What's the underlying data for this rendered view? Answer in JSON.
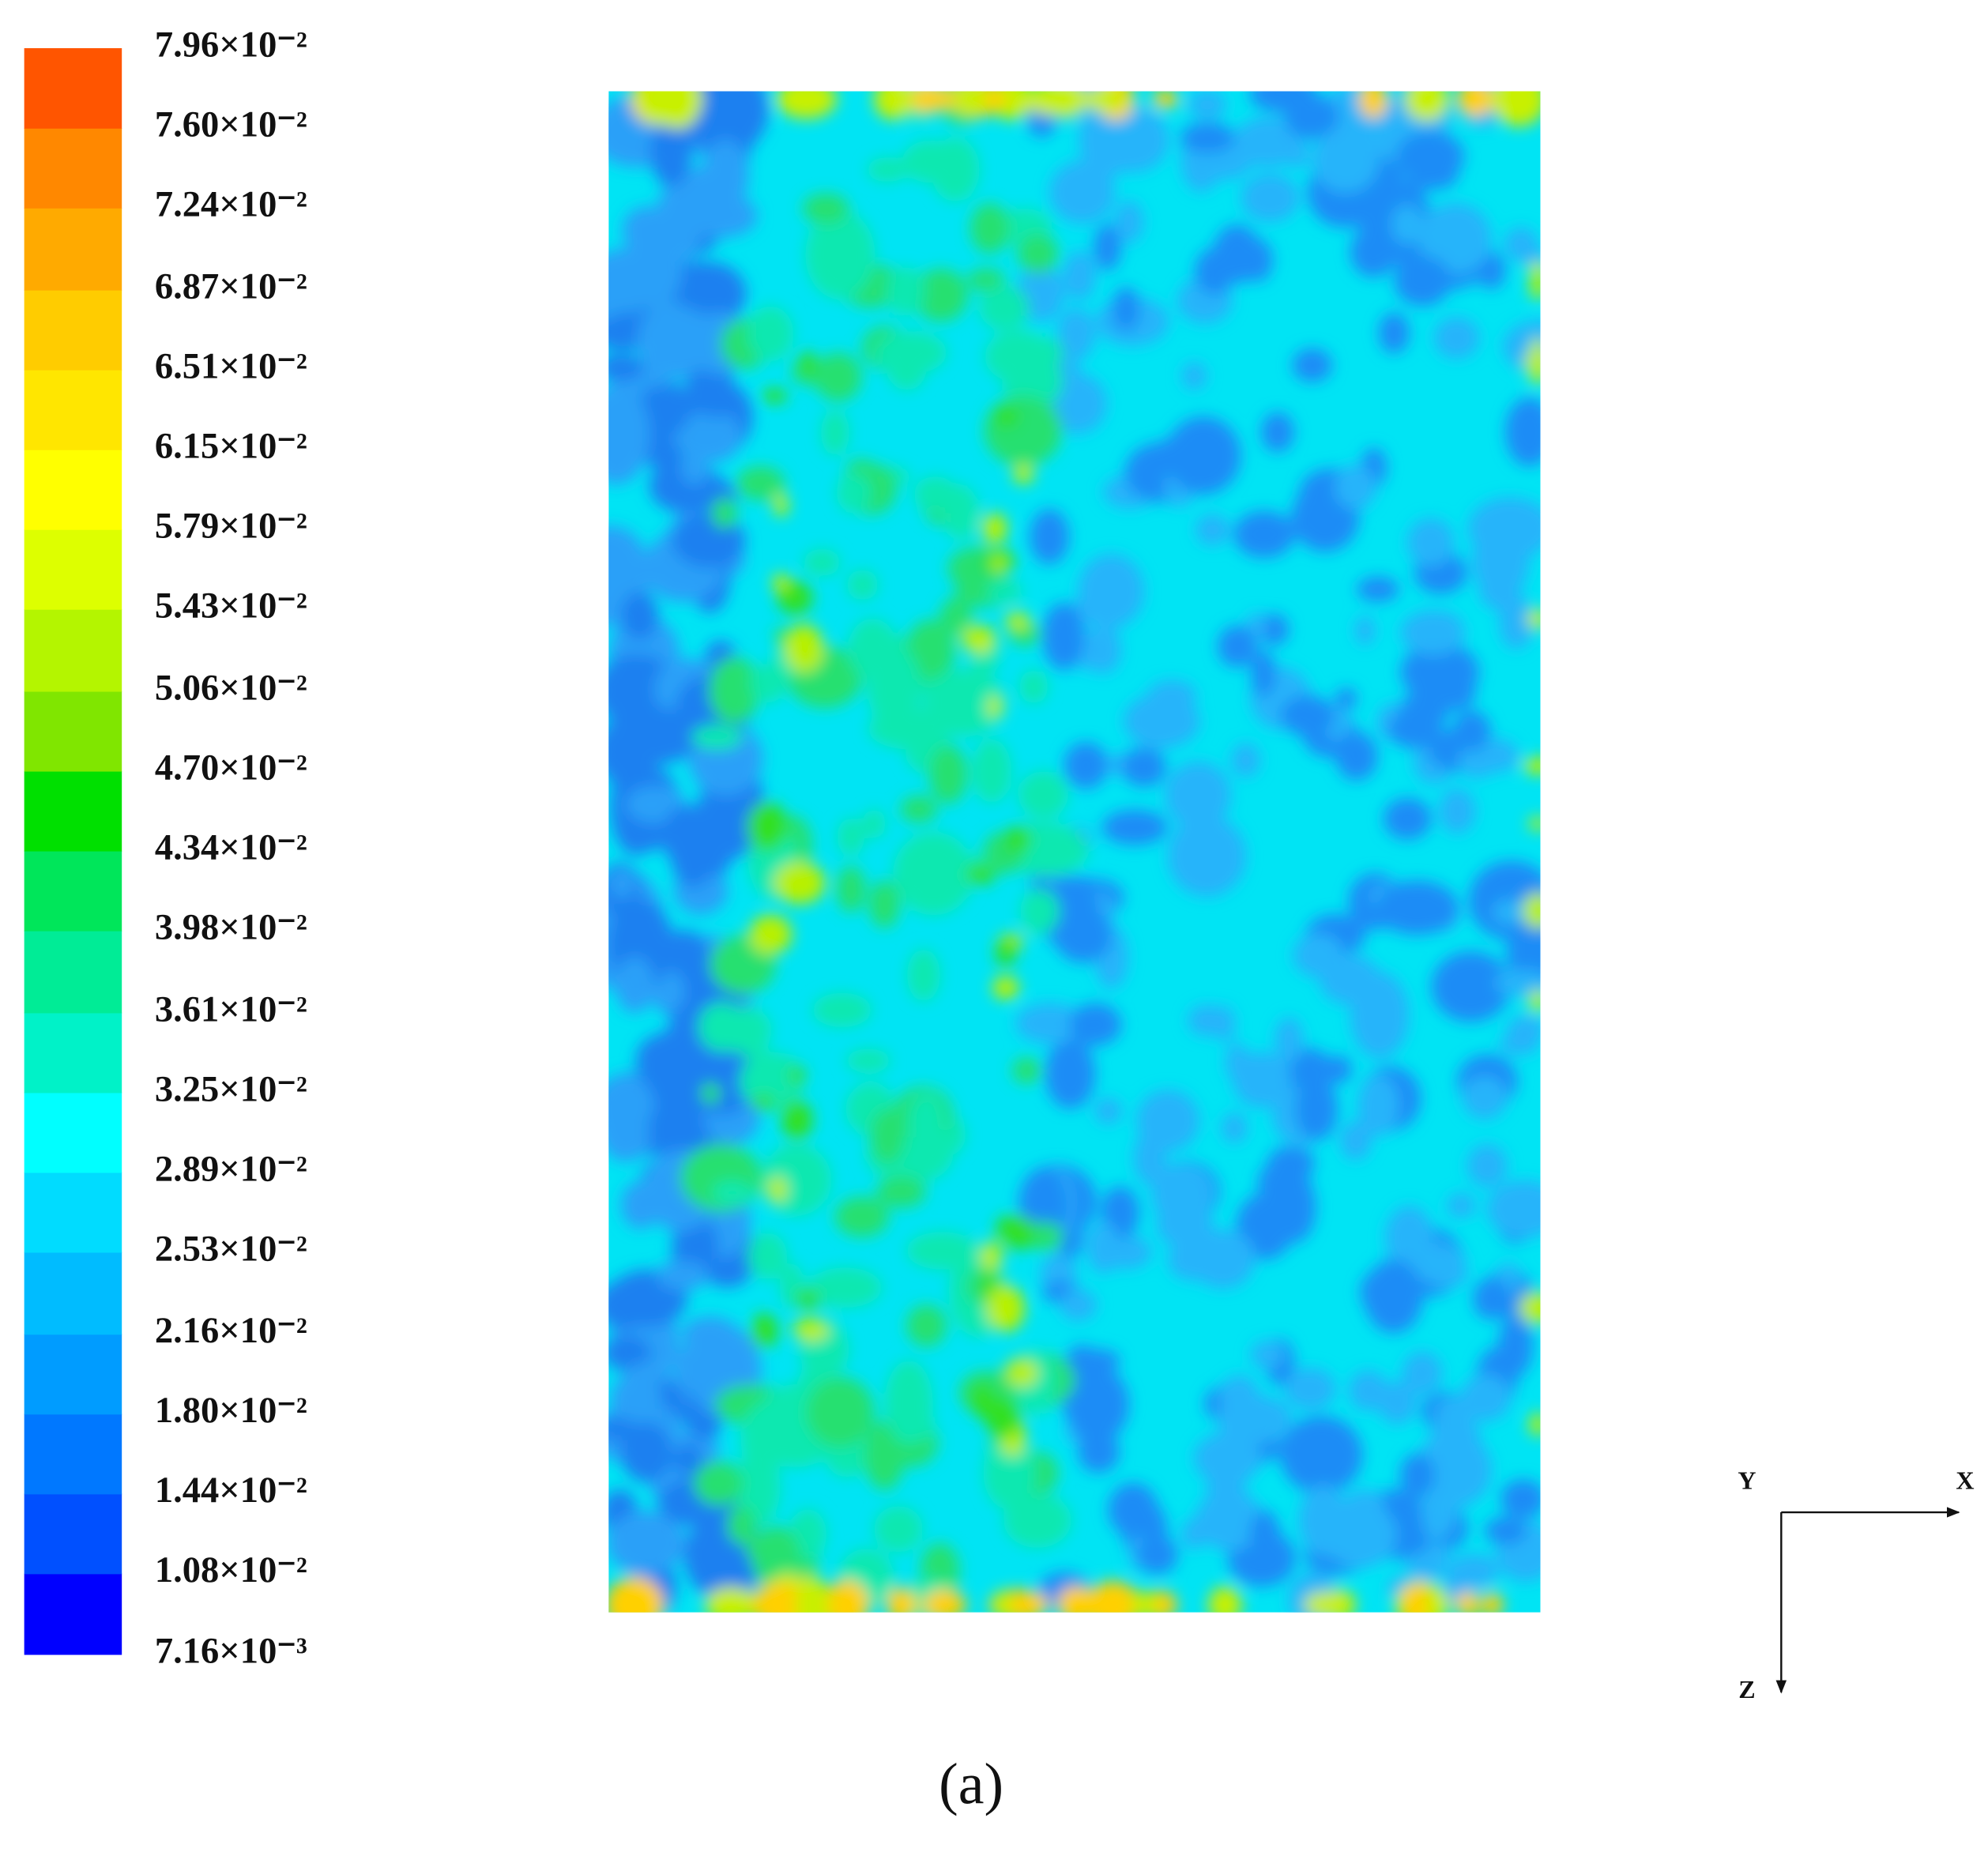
{
  "chart_data": {
    "type": "contour",
    "clim": [
      0.00716,
      0.0796
    ],
    "colorbar_ticks": [
      {
        "value": 0.00716,
        "label": "7.16×10⁻³"
      },
      {
        "value": 0.0108,
        "label": "1.08×10⁻²"
      },
      {
        "value": 0.0144,
        "label": "1.44×10⁻²"
      },
      {
        "value": 0.018,
        "label": "1.80×10⁻²"
      },
      {
        "value": 0.0216,
        "label": "2.16×10⁻²"
      },
      {
        "value": 0.0253,
        "label": "2.53×10⁻²"
      },
      {
        "value": 0.0289,
        "label": "2.89×10⁻²"
      },
      {
        "value": 0.0325,
        "label": "3.25×10⁻²"
      },
      {
        "value": 0.0361,
        "label": "3.61×10⁻²"
      },
      {
        "value": 0.0398,
        "label": "3.98×10⁻²"
      },
      {
        "value": 0.0434,
        "label": "4.34×10⁻²"
      },
      {
        "value": 0.047,
        "label": "4.70×10⁻²"
      },
      {
        "value": 0.0506,
        "label": "5.06×10⁻²"
      },
      {
        "value": 0.0543,
        "label": "5.43×10⁻²"
      },
      {
        "value": 0.0579,
        "label": "5.79×10⁻²"
      },
      {
        "value": 0.0615,
        "label": "6.15×10⁻²"
      },
      {
        "value": 0.0651,
        "label": "6.51×10⁻²"
      },
      {
        "value": 0.0687,
        "label": "6.87×10⁻²"
      },
      {
        "value": 0.0724,
        "label": "7.24×10⁻²"
      },
      {
        "value": 0.076,
        "label": "7.60×10⁻²"
      },
      {
        "value": 0.0796,
        "label": "7.96×10⁻²"
      }
    ],
    "colors": [
      "#0000ff",
      "#0050ff",
      "#0078ff",
      "#009cff",
      "#00bcff",
      "#00dcff",
      "#00ffff",
      "#00f2c8",
      "#00ec96",
      "#00e65a",
      "#00e000",
      "#80e600",
      "#b4f500",
      "#ddff00",
      "#ffff00",
      "#ffe600",
      "#ffcc00",
      "#ffaa00",
      "#ff8800",
      "#ff5500"
    ],
    "axis_labels": {
      "y": "Y",
      "x": "X",
      "z": "Z"
    },
    "caption": "(a)"
  }
}
